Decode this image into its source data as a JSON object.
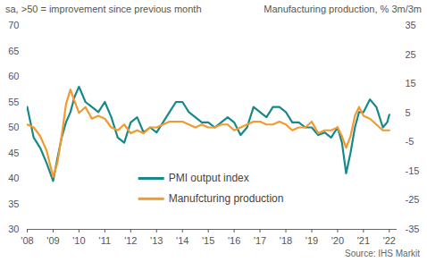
{
  "chart_data": {
    "type": "line",
    "ylabel": "sa, >50 = improvement since previous month",
    "y2label": "Manufacturing production, % 3m/3m",
    "caption": "Source: IHS Markit",
    "x": [
      2008.0,
      2008.25,
      2008.5,
      2008.75,
      2009.0,
      2009.17,
      2009.33,
      2009.5,
      2009.67,
      2009.83,
      2010.0,
      2010.25,
      2010.5,
      2010.75,
      2011.0,
      2011.25,
      2011.5,
      2011.75,
      2012.0,
      2012.25,
      2012.5,
      2012.75,
      2013.0,
      2013.25,
      2013.5,
      2013.75,
      2014.0,
      2014.25,
      2014.5,
      2014.75,
      2015.0,
      2015.25,
      2015.5,
      2015.75,
      2016.0,
      2016.25,
      2016.5,
      2016.75,
      2017.0,
      2017.25,
      2017.5,
      2017.75,
      2018.0,
      2018.25,
      2018.5,
      2018.75,
      2019.0,
      2019.25,
      2019.5,
      2019.75,
      2020.0,
      2020.17,
      2020.33,
      2020.5,
      2020.67,
      2020.83,
      2021.0,
      2021.25,
      2021.5,
      2021.75,
      2021.92,
      2022.0
    ],
    "series": [
      {
        "name": "PMI output index",
        "color": "#17898a",
        "axis": "y",
        "values": [
          54,
          48,
          46,
          43,
          39.5,
          44,
          48,
          51,
          53,
          56,
          58,
          55,
          54,
          53,
          55,
          52,
          48,
          47,
          51,
          52,
          49,
          50,
          49,
          51,
          53,
          55,
          55,
          53,
          52,
          51,
          51,
          50,
          51,
          52,
          51,
          48.5,
          50,
          54,
          53,
          52,
          54,
          54,
          53,
          51,
          51,
          50,
          50,
          48.5,
          49,
          48,
          50,
          47,
          41,
          45,
          50,
          53,
          53,
          55.5,
          54,
          50,
          51,
          52.5
        ]
      },
      {
        "name": "Manufcturing production",
        "color": "#f39a2e",
        "axis": "y2",
        "values": [
          1,
          0,
          -3,
          -8,
          -17,
          -12,
          -3,
          8,
          13,
          9,
          5,
          7,
          3,
          4,
          3,
          0,
          -1,
          1,
          -2,
          -1,
          -2,
          0,
          0,
          1,
          2,
          2,
          2,
          1,
          0,
          1,
          0,
          0,
          1,
          1,
          -1,
          0,
          1,
          2,
          2,
          1,
          1,
          2,
          1,
          -1,
          0,
          0,
          2,
          -2,
          -1,
          -1,
          0,
          -3,
          -7,
          -3,
          4,
          7,
          4,
          3,
          1,
          -1,
          -1,
          -1
        ]
      }
    ],
    "xlim": [
      2008,
      2022.3
    ],
    "xticks": [
      {
        "value": 2008,
        "label": "'08"
      },
      {
        "value": 2009,
        "label": "'09"
      },
      {
        "value": 2010,
        "label": "'10"
      },
      {
        "value": 2011,
        "label": "'11"
      },
      {
        "value": 2012,
        "label": "'12"
      },
      {
        "value": 2013,
        "label": "'13"
      },
      {
        "value": 2014,
        "label": "'14"
      },
      {
        "value": 2015,
        "label": "'15"
      },
      {
        "value": 2016,
        "label": "'16"
      },
      {
        "value": 2017,
        "label": "'17"
      },
      {
        "value": 2018,
        "label": "'18"
      },
      {
        "value": 2019,
        "label": "'19"
      },
      {
        "value": 2020,
        "label": "'20"
      },
      {
        "value": 2021,
        "label": "'21"
      },
      {
        "value": 2022,
        "label": "'22"
      }
    ],
    "ylim": [
      30,
      70
    ],
    "yticks": [
      30,
      35,
      40,
      45,
      50,
      55,
      60,
      65,
      70
    ],
    "y2lim": [
      -35,
      35
    ],
    "y2ticks": [
      -35,
      -25,
      -15,
      -5,
      5,
      15,
      25,
      35
    ],
    "grid": false,
    "legend": "bottom"
  }
}
